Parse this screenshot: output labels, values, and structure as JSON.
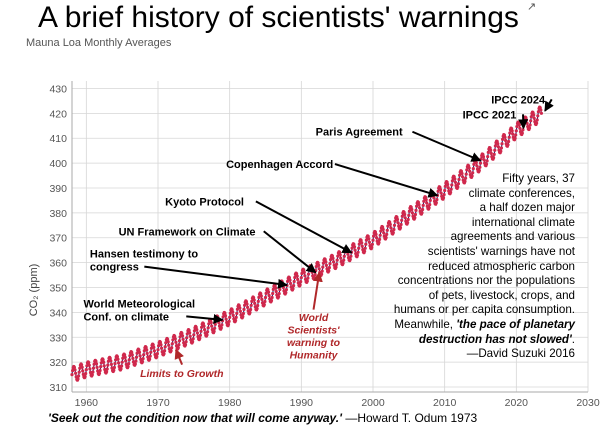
{
  "title": "A brief history of scientists' warnings",
  "chart_data": {
    "type": "line",
    "title": "Mauna Loa Monthly Averages",
    "ylabel": "CO₂ (ppm)",
    "xlabel": "",
    "xlim": [
      1958,
      2030
    ],
    "ylim": [
      308,
      433
    ],
    "x_ticks": [
      1960,
      1970,
      1980,
      1990,
      2000,
      2010,
      2020,
      2030
    ],
    "y_ticks": [
      310,
      320,
      330,
      340,
      350,
      360,
      370,
      380,
      390,
      400,
      410,
      420,
      430
    ],
    "grid": true,
    "series": [
      {
        "color": "#1a2a7a",
        "marker_color": "#d0284c",
        "seasonal_amplitude_ppm": 3,
        "trend_points": [
          [
            1958,
            315
          ],
          [
            1960,
            317
          ],
          [
            1965,
            320
          ],
          [
            1970,
            325
          ],
          [
            1975,
            331
          ],
          [
            1980,
            338
          ],
          [
            1985,
            346
          ],
          [
            1990,
            354
          ],
          [
            1995,
            361
          ],
          [
            2000,
            369
          ],
          [
            2005,
            379
          ],
          [
            2010,
            389
          ],
          [
            2015,
            400
          ],
          [
            2020,
            413
          ],
          [
            2023.5,
            420
          ]
        ]
      }
    ],
    "annotations": [
      {
        "text": "World Meteorological\nConf. on climate",
        "color": "#000000",
        "x": 1979,
        "y": 337,
        "label_x": 1959.6,
        "label_y": 342,
        "align": "start"
      },
      {
        "text": "Hansen testimony to\ncongress",
        "color": "#000000",
        "x": 1988,
        "y": 351,
        "label_x": 1960.5,
        "label_y": 362,
        "align": "start"
      },
      {
        "text": "UN Framework on Climate",
        "color": "#000000",
        "x": 1992,
        "y": 356,
        "label_x": 1964.5,
        "label_y": 371,
        "align": "start"
      },
      {
        "text": "Kyoto Protocol",
        "color": "#000000",
        "x": 1997,
        "y": 364,
        "label_x": 1971,
        "label_y": 383,
        "align": "start"
      },
      {
        "text": "Copenhagen Accord",
        "color": "#000000",
        "x": 2009,
        "y": 387,
        "label_x": 1979.5,
        "label_y": 398,
        "align": "start"
      },
      {
        "text": "Paris Agreement",
        "color": "#000000",
        "x": 2015,
        "y": 401,
        "label_x": 1992,
        "label_y": 411,
        "align": "start"
      },
      {
        "text": "IPCC 2021",
        "color": "#000000",
        "x": 2021,
        "y": 414,
        "label_x": 2012.5,
        "label_y": 418,
        "align": "start"
      },
      {
        "text": "IPCC 2024",
        "color": "#000000",
        "x": 2024,
        "y": 421,
        "label_x": 2016.5,
        "label_y": 424,
        "align": "start"
      },
      {
        "text": "Limits to Growth",
        "color": "#b0282a",
        "x": 1972.5,
        "y": 325,
        "label_x": 1967.5,
        "label_y": 314,
        "align": "start",
        "italic": true
      },
      {
        "text": "World\nScientists'\nwarning to\nHumanity",
        "color": "#b0282a",
        "x": 1992.5,
        "y": 356,
        "label_x": 1991.7,
        "label_y": 336.5,
        "align": "middle",
        "italic": true
      }
    ]
  },
  "quotes": {
    "suzuki_lines": [
      "Fifty years, 37",
      "climate conferences,",
      "a half dozen major",
      "international climate",
      "agreements and various",
      "scientists' warnings have not",
      "reduced atmospheric carbon",
      "concentrations nor the populations",
      "of pets, livestock, crops, and",
      "humans or per capita consumption."
    ],
    "suzuki_meanwhile": "Meanwhile, ",
    "suzuki_emphasis_1": "'the pace of planetary",
    "suzuki_emphasis_2": "destruction has not slowed'",
    "suzuki_period": ".",
    "suzuki_attribution": "—David Suzuki 2016",
    "odum_emphasis": "'Seek out the condition now that will come anyway.'",
    "odum_attribution": " —Howard T. Odum 1973"
  }
}
